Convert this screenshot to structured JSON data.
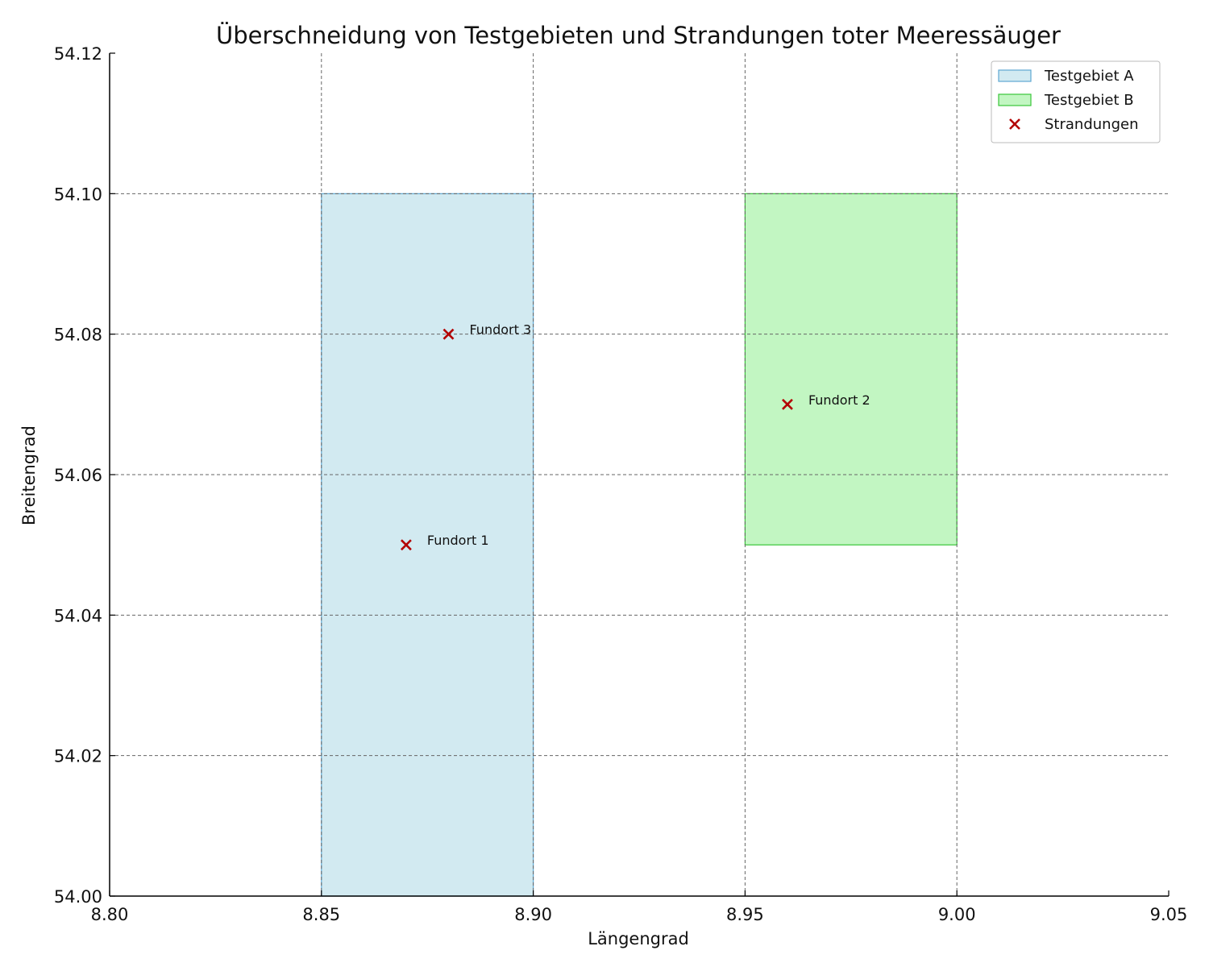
{
  "chart_data": {
    "type": "scatter",
    "title": "Überschneidung von Testgebieten und Strandungen toter Meeressäuger",
    "xlabel": "Längengrad",
    "ylabel": "Breitengrad",
    "xlim": [
      8.8,
      9.05
    ],
    "ylim": [
      54.0,
      54.12
    ],
    "xticks": [
      "8.80",
      "8.85",
      "8.90",
      "8.95",
      "9.00",
      "9.05"
    ],
    "yticks": [
      "54.00",
      "54.02",
      "54.04",
      "54.06",
      "54.08",
      "54.10",
      "54.12"
    ],
    "grid": true,
    "legend_position": "top-right",
    "areas": [
      {
        "name": "Testgebiet A",
        "x": [
          8.85,
          8.9
        ],
        "y": [
          54.0,
          54.1
        ],
        "fill": "#add8e6",
        "edge": "#5fa8d3"
      },
      {
        "name": "Testgebiet B",
        "x": [
          8.95,
          9.0
        ],
        "y": [
          54.05,
          54.1
        ],
        "fill": "#90ee90",
        "edge": "#39c639"
      }
    ],
    "series": [
      {
        "name": "Strandungen",
        "marker": "x",
        "color": "#b30000",
        "points": [
          {
            "label": "Fundort 1",
            "x": 8.87,
            "y": 54.05
          },
          {
            "label": "Fundort 2",
            "x": 8.96,
            "y": 54.07
          },
          {
            "label": "Fundort 3",
            "x": 8.88,
            "y": 54.08
          }
        ]
      }
    ]
  }
}
